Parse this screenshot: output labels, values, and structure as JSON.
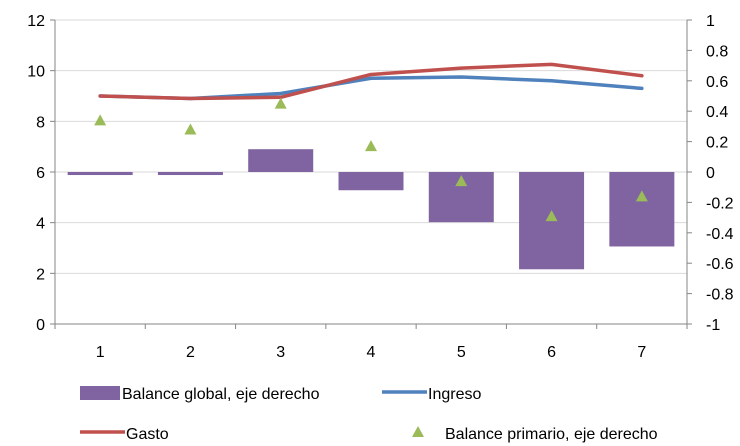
{
  "chart_data": {
    "type": "bar+line+scatter",
    "categories": [
      "1",
      "2",
      "3",
      "4",
      "5",
      "6",
      "7"
    ],
    "y_left": {
      "min": 0,
      "max": 12,
      "ticks": [
        "0",
        "2",
        "4",
        "6",
        "8",
        "10",
        "12"
      ]
    },
    "y_right": {
      "min": -1,
      "max": 1,
      "ticks": [
        "-1",
        "-0.8",
        "-0.6",
        "-0.4",
        "-0.2",
        "0",
        "0.2",
        "0.4",
        "0.6",
        "0.8",
        "1"
      ]
    },
    "grid": "horizontal",
    "legend_position": "bottom",
    "series": [
      {
        "name": "Balance global, eje derecho",
        "type": "bar",
        "axis": "right",
        "color": "#8064A2",
        "values": [
          -0.02,
          -0.02,
          0.15,
          -0.12,
          -0.33,
          -0.64,
          -0.49
        ]
      },
      {
        "name": "Ingreso",
        "type": "line",
        "axis": "left",
        "color": "#4F81BD",
        "values": [
          9.0,
          8.9,
          9.1,
          9.7,
          9.75,
          9.6,
          9.3
        ]
      },
      {
        "name": "Gasto",
        "type": "line",
        "axis": "left",
        "color": "#C0504D",
        "values": [
          9.0,
          8.9,
          8.95,
          9.85,
          10.1,
          10.25,
          9.8
        ]
      },
      {
        "name": "Balance primario, eje derecho",
        "type": "scatter",
        "axis": "right",
        "color": "#9BBB59",
        "values": [
          0.34,
          0.28,
          0.45,
          0.17,
          -0.06,
          -0.29,
          -0.16
        ]
      }
    ]
  }
}
